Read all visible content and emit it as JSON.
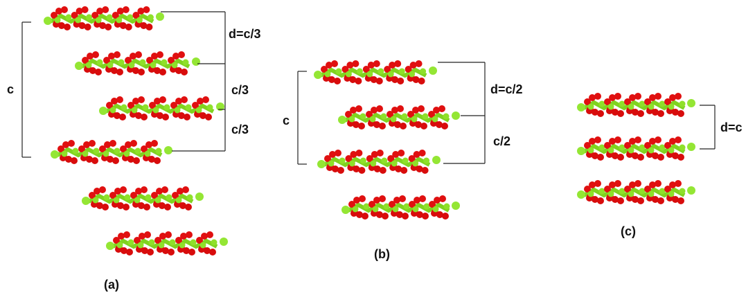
{
  "panel_a": {
    "label_c": "c",
    "label_d": "d=c/3",
    "label_gap1": "c/3",
    "label_gap2": "c/3",
    "caption": "(a)"
  },
  "panel_b": {
    "label_c": "c",
    "label_d": "d=c/2",
    "label_gap": "c/2",
    "caption": "(b)"
  },
  "panel_c": {
    "label_d": "d=c",
    "caption": "(c)"
  }
}
